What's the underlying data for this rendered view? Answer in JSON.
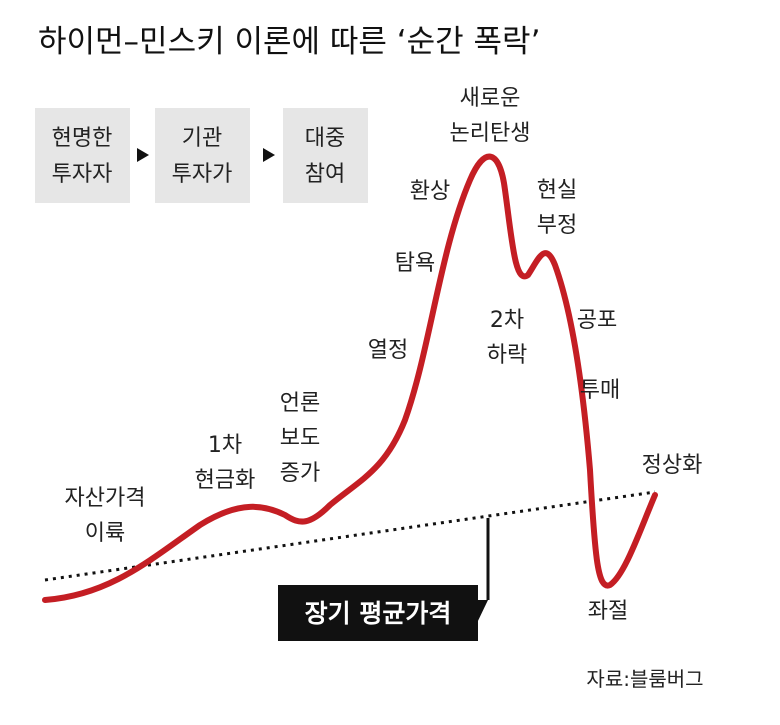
{
  "title": "하이먼–민스키 이론에 따른 ‘순간 폭락’",
  "stages": [
    [
      "현명한",
      "투자자"
    ],
    [
      "기관",
      "투자가"
    ],
    [
      "대중",
      "참여"
    ]
  ],
  "labels": {
    "new_paradigm": [
      "새로운",
      "논리탄생"
    ],
    "euphoria": [
      "환상"
    ],
    "greed": [
      "탐욕"
    ],
    "enthusiasm": [
      "열정"
    ],
    "media": [
      "언론",
      "보도",
      "증가"
    ],
    "first_sell": [
      "1차",
      "현금화"
    ],
    "takeoff": [
      "자산가격",
      "이륙"
    ],
    "denial": [
      "현실",
      "부정"
    ],
    "second_drop": [
      "2차",
      "하락"
    ],
    "fear": [
      "공포"
    ],
    "capitulation": [
      "투매"
    ],
    "normal": [
      "정상화"
    ],
    "despair": [
      "좌절"
    ]
  },
  "mean_label": "장기 평균가격",
  "source": "자료:블룸버그"
}
